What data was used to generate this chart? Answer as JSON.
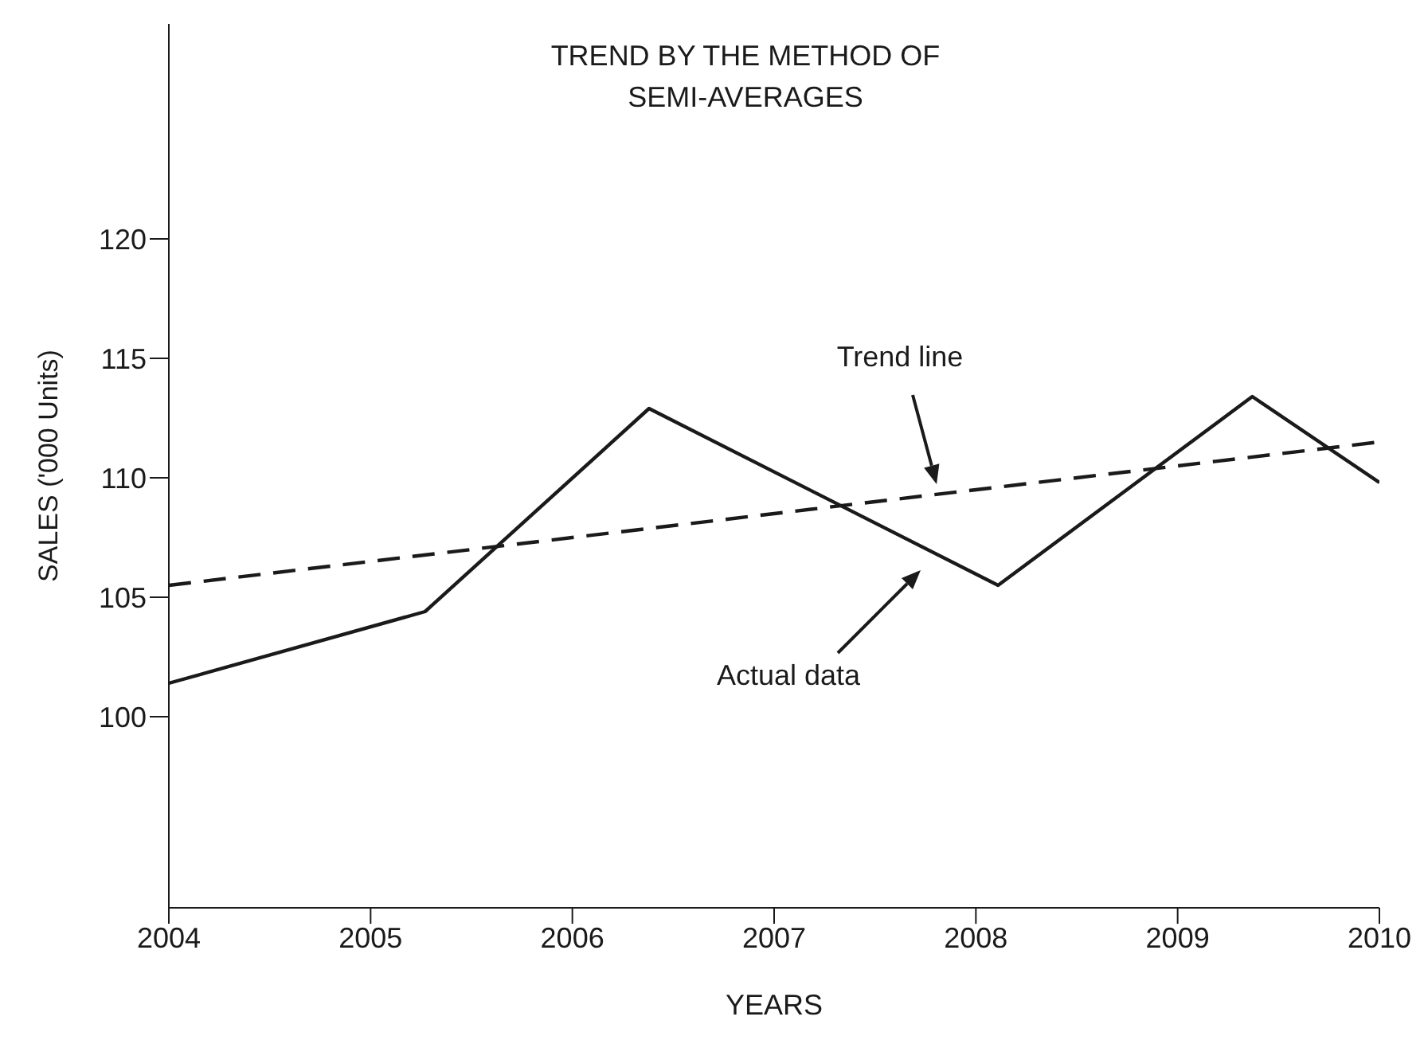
{
  "chart_data": {
    "type": "line",
    "title": "TREND BY THE METHOD OF\nSEMI-AVERAGES",
    "xlabel": "YEARS",
    "ylabel": "SALES ('000 Units)",
    "xlim": [
      2004,
      2010
    ],
    "xticks": [
      2004,
      2005,
      2006,
      2007,
      2008,
      2009,
      2010
    ],
    "ylim": [
      92,
      129
    ],
    "yticks": [
      100,
      105,
      110,
      115,
      120
    ],
    "marker": "none",
    "series": [
      {
        "color": "#1a1a1a",
        "line_style": "solid",
        "x": [
          2004,
          2005.27,
          2006.38,
          2008.11,
          2009.37,
          2010
        ],
        "values": [
          101.4,
          104.4,
          112.9,
          105.5,
          113.4,
          109.8
        ]
      },
      {
        "color": "#1a1a1a",
        "line_style": "dashed",
        "x": [
          2004,
          2010
        ],
        "values": [
          105.5,
          111.5
        ]
      }
    ],
    "annotations": [
      "Trend line",
      "Actual data"
    ]
  }
}
